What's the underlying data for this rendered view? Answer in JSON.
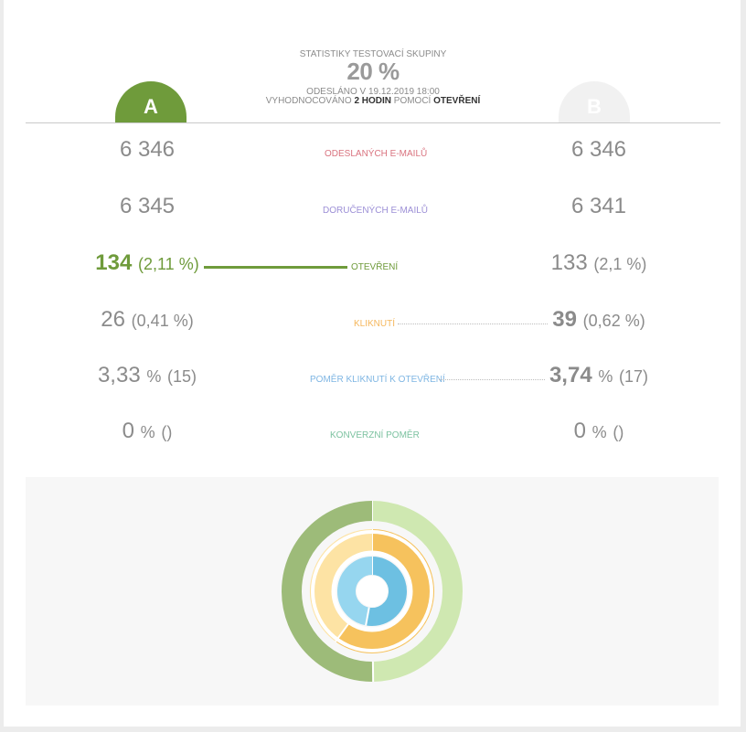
{
  "header": {
    "label": "STATISTIKY TESTOVACÍ SKUPINY",
    "percent": "20 %",
    "sent": "ODESLÁNO V 19.12.2019 18:00",
    "eval_prefix": "VYHODNOCOVÁNO",
    "eval_hours": "2 HODIN",
    "eval_mid": "POMOCÍ",
    "eval_metric": "OTEVŘENÍ"
  },
  "variants": {
    "a": "A",
    "b": "B"
  },
  "rows": [
    {
      "metric": "ODESLANÝCH E-MAILŮ",
      "color": "#d9737f",
      "a": {
        "main": "6 346",
        "sub": ""
      },
      "b": {
        "main": "6 346",
        "sub": ""
      }
    },
    {
      "metric": "DORUČENÝCH E-MAILŮ",
      "color": "#9c8fd6",
      "a": {
        "main": "6 345",
        "sub": ""
      },
      "b": {
        "main": "6 341",
        "sub": ""
      }
    },
    {
      "metric": "OTEVŘENÍ",
      "color": "#6f9b3b",
      "a": {
        "main": "134",
        "sub": "(2,11 %)"
      },
      "b": {
        "main": "133",
        "sub": "(2,1 %)"
      }
    },
    {
      "metric": "KLIKNUTÍ",
      "color": "#f5b75c",
      "a": {
        "main": "26",
        "sub": "(0,41 %)"
      },
      "b": {
        "main": "39",
        "sub": "(0,62 %)"
      }
    },
    {
      "metric": "POMĚR KLIKNUTÍ K OTEVŘENÍ",
      "color": "#7fb6e3",
      "a": {
        "main": "3,33",
        "pc": "%",
        "sub": "(15)"
      },
      "b": {
        "main": "3,74",
        "pc": "%",
        "sub": "(17)"
      }
    },
    {
      "metric": "KONVERZNÍ POMĚR",
      "color": "#7cc2a0",
      "a": {
        "main": "0",
        "pc": "%",
        "sub": "()"
      },
      "b": {
        "main": "0",
        "pc": "%",
        "sub": "()"
      }
    }
  ],
  "colors": {
    "variant_a": "#6f9b3b",
    "variant_b": "#f1f1f1",
    "opens_a": "#9dbb79",
    "opens_b": "#cfe8b1",
    "clicks_a": "#fde3a4",
    "clicks_b": "#f6c25d",
    "ctr_a": "#96d6ef",
    "ctr_b": "#6dc0e2"
  },
  "chart_data": {
    "type": "pie",
    "rings": [
      {
        "name": "OTEVŘENÍ",
        "values": [
          134,
          133
        ]
      },
      {
        "name": "KLIKNUTÍ",
        "values": [
          26,
          39
        ]
      },
      {
        "name": "POMĚR KLIKNUTÍ K OTEVŘENÍ",
        "values": [
          3.33,
          3.74
        ]
      }
    ],
    "categories": [
      "A",
      "B"
    ]
  }
}
